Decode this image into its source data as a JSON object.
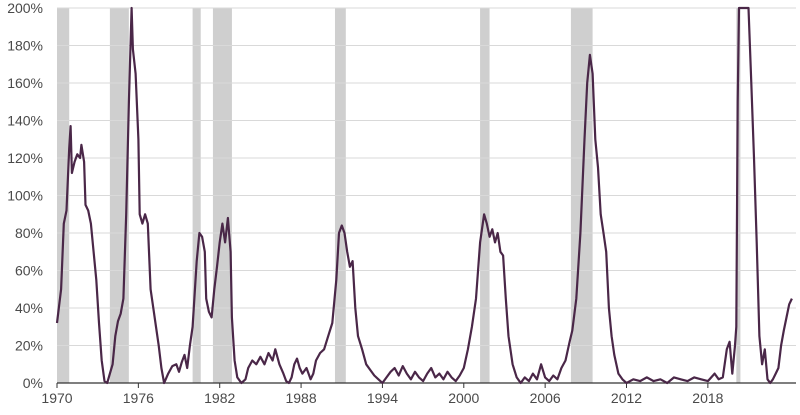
{
  "chart_data": {
    "type": "line",
    "title": "",
    "xlabel": "",
    "ylabel": "",
    "xlim": [
      1970,
      2024.5
    ],
    "ylim": [
      0,
      200
    ],
    "grid": true,
    "y_ticks": [
      {
        "value": 0,
        "label": "0%"
      },
      {
        "value": 20,
        "label": "20%"
      },
      {
        "value": 40,
        "label": "40%"
      },
      {
        "value": 60,
        "label": "60%"
      },
      {
        "value": 80,
        "label": "80%"
      },
      {
        "value": 100,
        "label": "100%"
      },
      {
        "value": 120,
        "label": "120%"
      },
      {
        "value": 140,
        "label": "140%"
      },
      {
        "value": 160,
        "label": "160%"
      },
      {
        "value": 180,
        "label": "180%"
      },
      {
        "value": 200,
        "label": "200%"
      }
    ],
    "x_ticks": [
      {
        "value": 1970,
        "label": "1970"
      },
      {
        "value": 1976,
        "label": "1976"
      },
      {
        "value": 1982,
        "label": "1982"
      },
      {
        "value": 1988,
        "label": "1988"
      },
      {
        "value": 1994,
        "label": "1994"
      },
      {
        "value": 2000,
        "label": "2000"
      },
      {
        "value": 2006,
        "label": "2006"
      },
      {
        "value": 2012,
        "label": "2012"
      },
      {
        "value": 2018,
        "label": "2018"
      }
    ],
    "shaded_periods": [
      [
        1970.0,
        1970.9
      ],
      [
        1973.9,
        1975.3
      ],
      [
        1980.0,
        1980.6
      ],
      [
        1981.5,
        1982.9
      ],
      [
        1990.5,
        1991.3
      ],
      [
        2001.2,
        2001.9
      ],
      [
        2007.9,
        2009.5
      ],
      [
        2020.1,
        2020.4
      ]
    ],
    "series": [
      {
        "color": "#4a2748",
        "points": [
          [
            1970.0,
            32
          ],
          [
            1970.3,
            50
          ],
          [
            1970.5,
            85
          ],
          [
            1970.7,
            92
          ],
          [
            1970.9,
            125
          ],
          [
            1971.0,
            137
          ],
          [
            1971.1,
            112
          ],
          [
            1971.3,
            118
          ],
          [
            1971.5,
            122
          ],
          [
            1971.7,
            120
          ],
          [
            1971.8,
            127
          ],
          [
            1972.0,
            118
          ],
          [
            1972.1,
            95
          ],
          [
            1972.3,
            92
          ],
          [
            1972.5,
            85
          ],
          [
            1972.7,
            70
          ],
          [
            1972.9,
            55
          ],
          [
            1973.1,
            32
          ],
          [
            1973.3,
            12
          ],
          [
            1973.5,
            1
          ],
          [
            1973.7,
            0
          ],
          [
            1973.9,
            5
          ],
          [
            1974.1,
            10
          ],
          [
            1974.3,
            25
          ],
          [
            1974.5,
            33
          ],
          [
            1974.7,
            37
          ],
          [
            1974.9,
            45
          ],
          [
            1975.1,
            90
          ],
          [
            1975.3,
            150
          ],
          [
            1975.5,
            200
          ],
          [
            1975.6,
            178
          ],
          [
            1975.8,
            165
          ],
          [
            1976.0,
            130
          ],
          [
            1976.1,
            90
          ],
          [
            1976.3,
            85
          ],
          [
            1976.5,
            90
          ],
          [
            1976.7,
            85
          ],
          [
            1976.9,
            50
          ],
          [
            1977.1,
            40
          ],
          [
            1977.3,
            30
          ],
          [
            1977.5,
            20
          ],
          [
            1977.7,
            8
          ],
          [
            1977.9,
            0
          ],
          [
            1978.2,
            5
          ],
          [
            1978.5,
            9
          ],
          [
            1978.8,
            10
          ],
          [
            1979.0,
            6
          ],
          [
            1979.2,
            11
          ],
          [
            1979.4,
            15
          ],
          [
            1979.6,
            8
          ],
          [
            1979.8,
            20
          ],
          [
            1980.0,
            30
          ],
          [
            1980.3,
            65
          ],
          [
            1980.5,
            80
          ],
          [
            1980.7,
            78
          ],
          [
            1980.9,
            70
          ],
          [
            1981.0,
            45
          ],
          [
            1981.2,
            38
          ],
          [
            1981.4,
            35
          ],
          [
            1981.6,
            50
          ],
          [
            1981.8,
            62
          ],
          [
            1982.0,
            75
          ],
          [
            1982.2,
            85
          ],
          [
            1982.4,
            75
          ],
          [
            1982.6,
            88
          ],
          [
            1982.8,
            70
          ],
          [
            1982.9,
            35
          ],
          [
            1983.1,
            12
          ],
          [
            1983.3,
            3
          ],
          [
            1983.6,
            0
          ],
          [
            1983.9,
            2
          ],
          [
            1984.1,
            8
          ],
          [
            1984.4,
            12
          ],
          [
            1984.7,
            10
          ],
          [
            1985.0,
            14
          ],
          [
            1985.3,
            10
          ],
          [
            1985.6,
            16
          ],
          [
            1985.9,
            12
          ],
          [
            1986.1,
            18
          ],
          [
            1986.4,
            10
          ],
          [
            1986.7,
            5
          ],
          [
            1986.9,
            1
          ],
          [
            1987.1,
            0
          ],
          [
            1987.3,
            3
          ],
          [
            1987.5,
            10
          ],
          [
            1987.7,
            13
          ],
          [
            1987.9,
            8
          ],
          [
            1988.1,
            5
          ],
          [
            1988.4,
            8
          ],
          [
            1988.7,
            2
          ],
          [
            1988.9,
            5
          ],
          [
            1989.1,
            12
          ],
          [
            1989.4,
            16
          ],
          [
            1989.7,
            18
          ],
          [
            1990.0,
            25
          ],
          [
            1990.3,
            32
          ],
          [
            1990.6,
            55
          ],
          [
            1990.8,
            80
          ],
          [
            1991.0,
            84
          ],
          [
            1991.2,
            80
          ],
          [
            1991.4,
            70
          ],
          [
            1991.6,
            62
          ],
          [
            1991.8,
            65
          ],
          [
            1992.0,
            40
          ],
          [
            1992.2,
            25
          ],
          [
            1992.5,
            18
          ],
          [
            1992.8,
            10
          ],
          [
            1993.1,
            7
          ],
          [
            1993.4,
            4
          ],
          [
            1993.7,
            2
          ],
          [
            1994.0,
            0
          ],
          [
            1994.3,
            3
          ],
          [
            1994.6,
            6
          ],
          [
            1994.9,
            8
          ],
          [
            1995.2,
            4
          ],
          [
            1995.5,
            9
          ],
          [
            1995.8,
            5
          ],
          [
            1996.1,
            2
          ],
          [
            1996.4,
            6
          ],
          [
            1996.7,
            3
          ],
          [
            1997.0,
            1
          ],
          [
            1997.3,
            5
          ],
          [
            1997.6,
            8
          ],
          [
            1997.9,
            3
          ],
          [
            1998.2,
            5
          ],
          [
            1998.5,
            2
          ],
          [
            1998.8,
            6
          ],
          [
            1999.1,
            3
          ],
          [
            1999.4,
            1
          ],
          [
            1999.7,
            4
          ],
          [
            2000.0,
            8
          ],
          [
            2000.3,
            18
          ],
          [
            2000.6,
            30
          ],
          [
            2000.9,
            45
          ],
          [
            2001.2,
            75
          ],
          [
            2001.5,
            90
          ],
          [
            2001.7,
            85
          ],
          [
            2001.9,
            78
          ],
          [
            2002.1,
            82
          ],
          [
            2002.3,
            75
          ],
          [
            2002.5,
            80
          ],
          [
            2002.7,
            70
          ],
          [
            2002.9,
            68
          ],
          [
            2003.1,
            45
          ],
          [
            2003.3,
            25
          ],
          [
            2003.6,
            10
          ],
          [
            2003.9,
            3
          ],
          [
            2004.2,
            0
          ],
          [
            2004.5,
            3
          ],
          [
            2004.8,
            1
          ],
          [
            2005.1,
            5
          ],
          [
            2005.4,
            2
          ],
          [
            2005.7,
            10
          ],
          [
            2006.0,
            3
          ],
          [
            2006.3,
            1
          ],
          [
            2006.6,
            4
          ],
          [
            2006.9,
            2
          ],
          [
            2007.2,
            8
          ],
          [
            2007.5,
            12
          ],
          [
            2007.8,
            22
          ],
          [
            2008.0,
            28
          ],
          [
            2008.3,
            45
          ],
          [
            2008.6,
            80
          ],
          [
            2008.9,
            130
          ],
          [
            2009.1,
            160
          ],
          [
            2009.3,
            175
          ],
          [
            2009.5,
            165
          ],
          [
            2009.7,
            130
          ],
          [
            2009.9,
            115
          ],
          [
            2010.1,
            90
          ],
          [
            2010.3,
            80
          ],
          [
            2010.5,
            70
          ],
          [
            2010.7,
            40
          ],
          [
            2010.9,
            25
          ],
          [
            2011.1,
            15
          ],
          [
            2011.4,
            5
          ],
          [
            2011.7,
            2
          ],
          [
            2012.0,
            0
          ],
          [
            2012.5,
            2
          ],
          [
            2013.0,
            1
          ],
          [
            2013.5,
            3
          ],
          [
            2014.0,
            1
          ],
          [
            2014.5,
            2
          ],
          [
            2015.0,
            0
          ],
          [
            2015.5,
            3
          ],
          [
            2016.0,
            2
          ],
          [
            2016.5,
            1
          ],
          [
            2017.0,
            3
          ],
          [
            2017.5,
            2
          ],
          [
            2018.0,
            1
          ],
          [
            2018.5,
            5
          ],
          [
            2018.8,
            2
          ],
          [
            2019.1,
            3
          ],
          [
            2019.4,
            18
          ],
          [
            2019.6,
            22
          ],
          [
            2019.8,
            5
          ],
          [
            2020.0,
            20
          ],
          [
            2020.1,
            30
          ],
          [
            2020.2,
            150
          ],
          [
            2020.3,
            200
          ],
          [
            2020.35,
            200
          ],
          [
            2020.4,
            200
          ],
          [
            2020.6,
            200
          ],
          [
            2020.8,
            200
          ],
          [
            2021.0,
            200
          ],
          [
            2021.2,
            160
          ],
          [
            2021.4,
            120
          ],
          [
            2021.6,
            75
          ],
          [
            2021.8,
            25
          ],
          [
            2022.0,
            10
          ],
          [
            2022.2,
            18
          ],
          [
            2022.4,
            2
          ],
          [
            2022.6,
            0
          ],
          [
            2022.8,
            2
          ],
          [
            2023.0,
            5
          ],
          [
            2023.2,
            8
          ],
          [
            2023.4,
            20
          ],
          [
            2023.6,
            28
          ],
          [
            2023.8,
            35
          ],
          [
            2024.0,
            42
          ],
          [
            2024.2,
            45
          ]
        ]
      }
    ]
  }
}
